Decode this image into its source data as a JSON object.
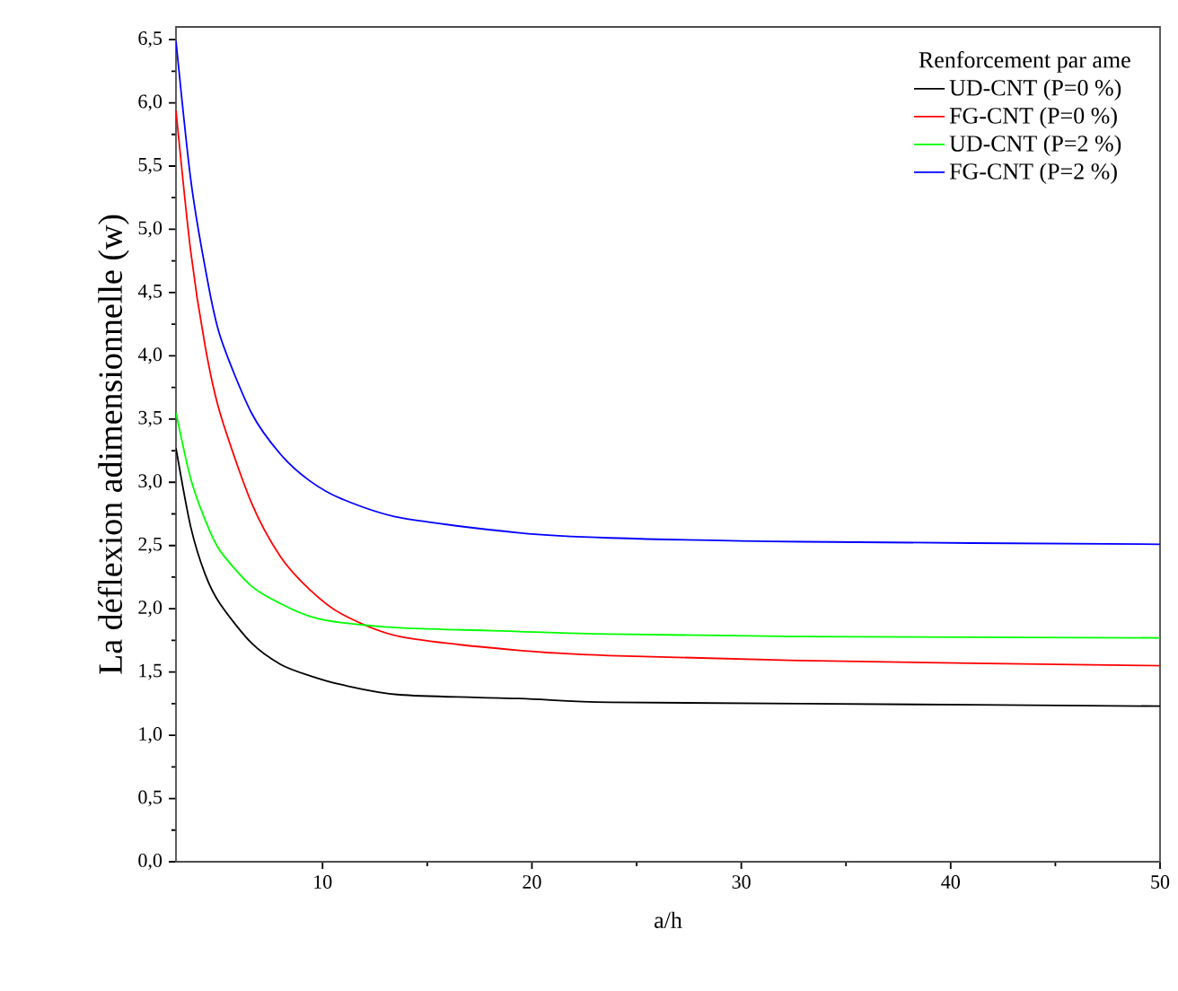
{
  "chart_data": {
    "type": "line",
    "xlabel": "a/h",
    "ylabel": "La déflexion adimensionnelle (w)",
    "legend_title": "Renforcement par ame",
    "x": [
      3,
      3.7,
      4.4,
      5.1,
      6.6,
      8,
      9.4,
      10.9,
      13.7,
      19.4,
      23.7,
      32.9,
      50
    ],
    "series": [
      {
        "name": "UD-CNT (P=0 %)",
        "color": "#000000",
        "values": [
          3.27,
          2.65,
          2.27,
          2.04,
          1.73,
          1.56,
          1.47,
          1.4,
          1.32,
          1.29,
          1.26,
          1.25,
          1.23
        ]
      },
      {
        "name": "FG-CNT (P=0 %)",
        "color": "#ff0000",
        "values": [
          5.94,
          4.83,
          4.07,
          3.55,
          2.84,
          2.41,
          2.15,
          1.96,
          1.78,
          1.67,
          1.63,
          1.59,
          1.55
        ]
      },
      {
        "name": "UD-CNT (P=2 %)",
        "color": "#00ff00",
        "values": [
          3.55,
          3.03,
          2.7,
          2.46,
          2.18,
          2.04,
          1.94,
          1.89,
          1.85,
          1.82,
          1.8,
          1.78,
          1.77
        ]
      },
      {
        "name": "FG-CNT (P=2 %)",
        "color": "#0000ff",
        "values": [
          6.49,
          5.4,
          4.69,
          4.16,
          3.55,
          3.22,
          3.01,
          2.87,
          2.72,
          2.6,
          2.56,
          2.53,
          2.51
        ]
      }
    ],
    "xlim": [
      3,
      50
    ],
    "xticks": [
      10,
      20,
      30,
      40,
      50
    ],
    "ylim": [
      0,
      6.6
    ],
    "yticks": [
      {
        "value": 0,
        "label": "0,0"
      },
      {
        "value": 0.5,
        "label": "0,5"
      },
      {
        "value": 1,
        "label": "1,0"
      },
      {
        "value": 1.5,
        "label": "1,5"
      },
      {
        "value": 2,
        "label": "2,0"
      },
      {
        "value": 2.5,
        "label": "2,5"
      },
      {
        "value": 3,
        "label": "3,0"
      },
      {
        "value": 3.5,
        "label": "3,5"
      },
      {
        "value": 4,
        "label": "4,0"
      },
      {
        "value": 4.5,
        "label": "4,5"
      },
      {
        "value": 5,
        "label": "5,0"
      },
      {
        "value": 5.5,
        "label": "5,5"
      },
      {
        "value": 6,
        "label": "6,0"
      },
      {
        "value": 6.5,
        "label": "6,5"
      }
    ],
    "legend": "top right",
    "grid": false,
    "marker": "none",
    "line_style": "solid"
  }
}
